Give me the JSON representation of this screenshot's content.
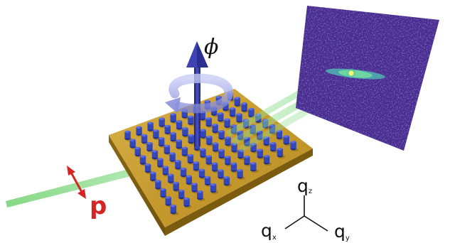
{
  "labels": {
    "rotation_angle": "ϕ",
    "polarization": "p",
    "axis_z_base": "q",
    "axis_z_sub": "z",
    "axis_x_base": "q",
    "axis_x_sub": "x",
    "axis_y_base": "q",
    "axis_y_sub": "y"
  },
  "colors": {
    "substrate": "#c8a23a",
    "pillar": "#3347b8",
    "beam": "#7fd67f",
    "rotation_arrow": "#2b2f8f",
    "polarization_arrow": "#d42424",
    "detector": "#4a2a8c"
  },
  "icons": {
    "rotation": "curved-arrow-icon",
    "polarization": "double-arrow-icon"
  }
}
